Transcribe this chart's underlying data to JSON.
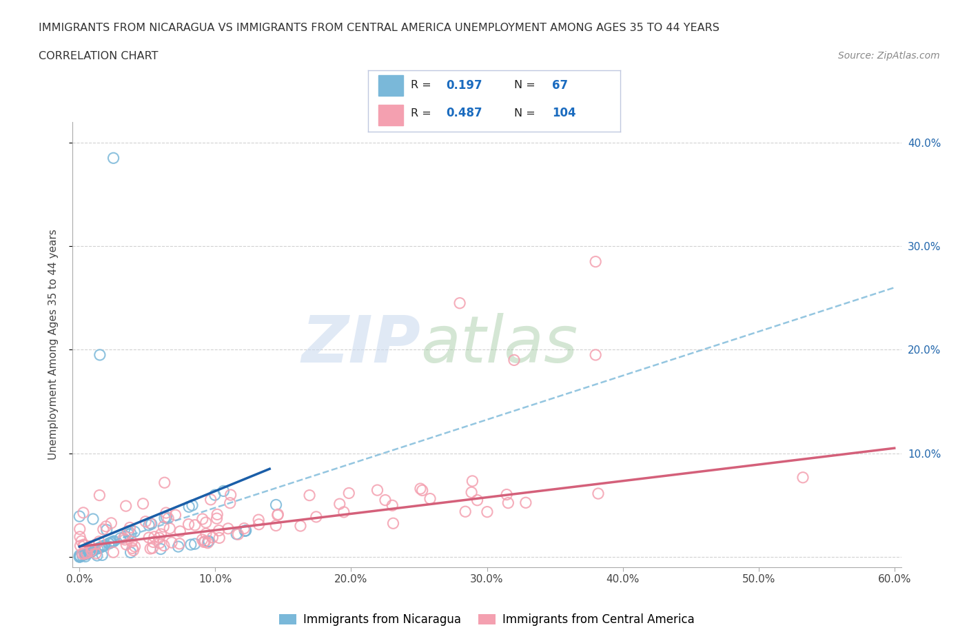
{
  "title_line1": "IMMIGRANTS FROM NICARAGUA VS IMMIGRANTS FROM CENTRAL AMERICA UNEMPLOYMENT AMONG AGES 35 TO 44 YEARS",
  "title_line2": "CORRELATION CHART",
  "source_text": "Source: ZipAtlas.com",
  "ylabel": "Unemployment Among Ages 35 to 44 years",
  "legend_label1": "Immigrants from Nicaragua",
  "legend_label2": "Immigrants from Central America",
  "R1": 0.197,
  "N1": 67,
  "R2": 0.487,
  "N2": 104,
  "color1": "#7ab8d9",
  "color2": "#f4a0b0",
  "trend1_solid_color": "#1a5ea8",
  "trend1_dash_color": "#7ab8d9",
  "trend2_color": "#d4607a",
  "xlim": [
    -0.005,
    0.605
  ],
  "ylim": [
    -0.01,
    0.42
  ],
  "xticks": [
    0.0,
    0.1,
    0.2,
    0.3,
    0.4,
    0.5,
    0.6
  ],
  "xticklabels": [
    "0.0%",
    "10.0%",
    "20.0%",
    "30.0%",
    "40.0%",
    "50.0%",
    "60.0%"
  ],
  "yticks": [
    0.0,
    0.1,
    0.2,
    0.3,
    0.4
  ],
  "yticklabels_right": [
    "",
    "10.0%",
    "20.0%",
    "30.0%",
    "40.0%"
  ],
  "watermark_zip": "ZIP",
  "watermark_atlas": "atlas",
  "background_color": "#ffffff",
  "grid_color": "#cccccc"
}
